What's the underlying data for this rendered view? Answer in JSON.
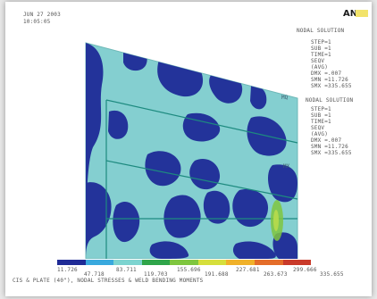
{
  "header": {
    "line1": "JUN 27 2003",
    "line2": "10:05:05",
    "right_title": "NODAL SOLUTION"
  },
  "brand": {
    "logo_text": "AN"
  },
  "right_panel": {
    "block1": [
      "STEP=1",
      "SUB =1",
      "TIME=1",
      "SEQV",
      "(AVG)",
      "DMX =.007",
      "SMN =11.726",
      "SMX =335.655"
    ],
    "block2": [
      "NODAL SOLUTION",
      "STEP=1",
      "SUB =1",
      "TIME=1",
      "SEQV",
      "(AVG)",
      "DMX =.007",
      "SMN =11.726",
      "SMX =335.655"
    ],
    "labels": [
      "MQ",
      "MX"
    ]
  },
  "legend": {
    "ticks_bottom": [
      "11.726",
      "83.711",
      "155.696",
      "227.681",
      "299.666"
    ],
    "ticks_top": [
      "47.718",
      "119.703",
      "191.688",
      "263.673",
      "335.655"
    ],
    "colors": [
      "#1f2b96",
      "#39a9de",
      "#7dd4d0",
      "#2fa54a",
      "#7fc63f",
      "#d6df3c",
      "#f0b12a",
      "#e46d2a",
      "#c93a2a"
    ]
  },
  "footer": {
    "caption": "CIS & PLATE (40\"), NODAL STRESSES & WELD BENDING MOMENTS"
  },
  "plot": {
    "colors": {
      "base": "#84cfd0",
      "low": "#23339a",
      "line": "#1d8a7f"
    }
  }
}
